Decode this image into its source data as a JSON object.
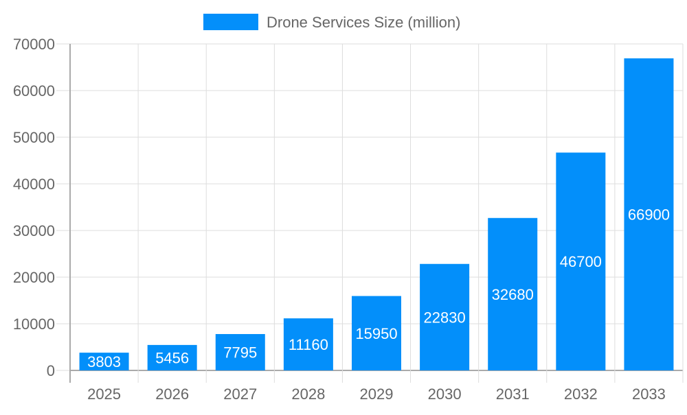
{
  "chart_data": {
    "type": "bar",
    "title": "",
    "xlabel": "",
    "ylabel": "",
    "categories": [
      "2025",
      "2026",
      "2027",
      "2028",
      "2029",
      "2030",
      "2031",
      "2032",
      "2033"
    ],
    "series": [
      {
        "name": "Drone Services Size (million)",
        "values": [
          3803,
          5456,
          7795,
          11160,
          15950,
          22830,
          32680,
          46700,
          66900
        ],
        "color": "#038ffa"
      }
    ],
    "ylim": [
      0,
      70000
    ],
    "yticks": [
      0,
      10000,
      20000,
      30000,
      40000,
      50000,
      60000,
      70000
    ],
    "grid": true,
    "legend_position": "top",
    "data_labels": true
  }
}
